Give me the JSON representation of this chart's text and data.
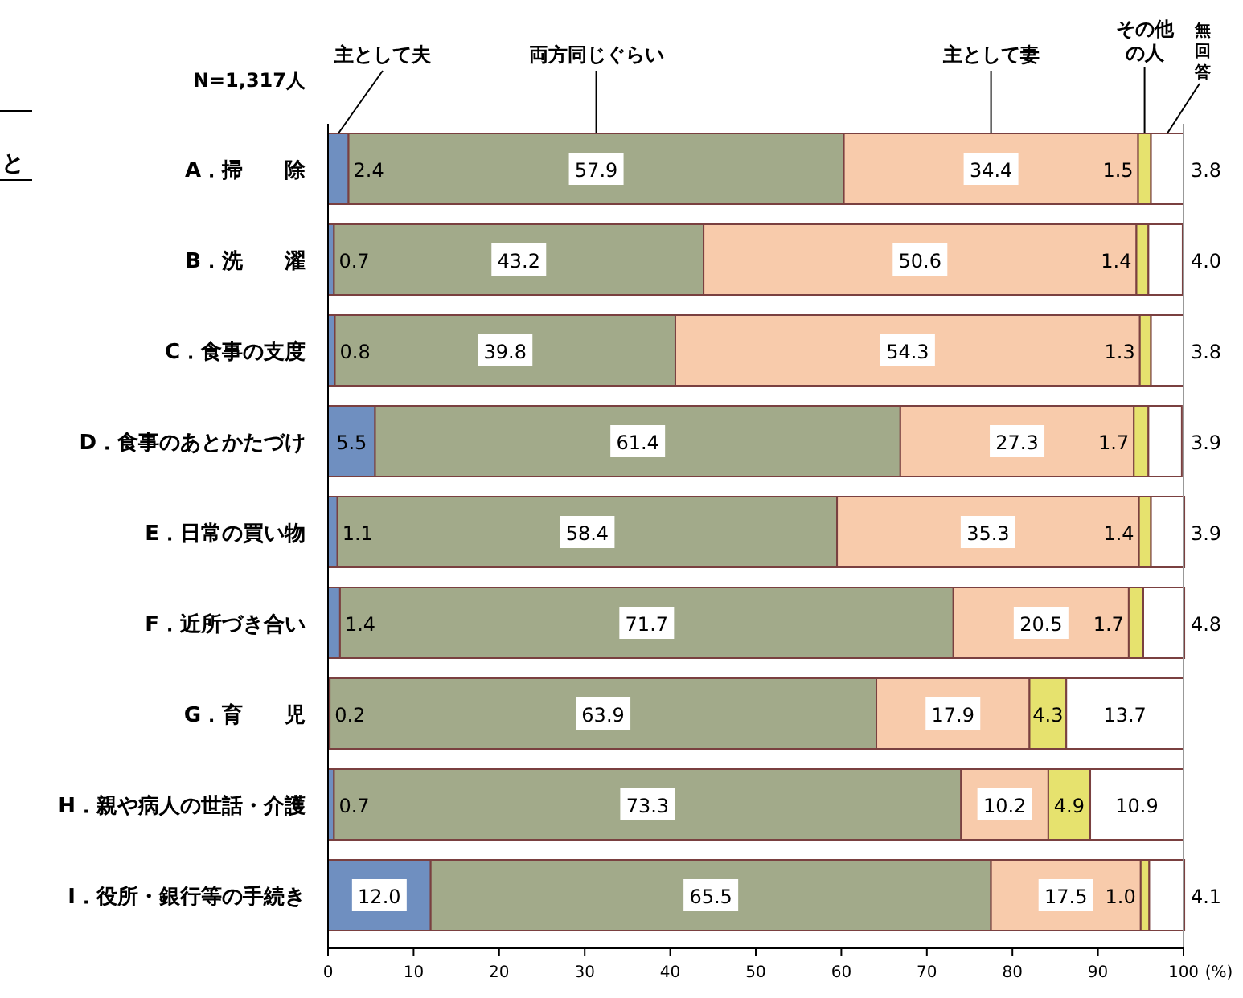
{
  "chart_data": {
    "type": "bar",
    "orientation": "horizontal",
    "stacked": true,
    "legend": "top",
    "xlabel": "(%)",
    "annotations": [
      "N=1,317人",
      "と"
    ],
    "categories": [
      "A．掃　　除",
      "B．洗　　濯",
      "C．食事の支度",
      "D．食事のあとかたづけ",
      "E．日常の買い物",
      "F．近所づき合い",
      "G．育　　児",
      "H．親や病人の世話・介護",
      "I．役所・銀行等の手続き"
    ],
    "xlim": [
      0,
      100
    ],
    "xticks": [
      0,
      10,
      20,
      30,
      40,
      50,
      60,
      70,
      80,
      90,
      100
    ],
    "series": [
      {
        "name": "主として夫",
        "color": "#6f8fc0",
        "values": [
          2.4,
          0.7,
          0.8,
          5.5,
          1.1,
          1.4,
          0.2,
          0.7,
          12.0
        ],
        "value_labels": [
          "2.4",
          "0.7",
          "0.8",
          "5.5",
          "1.1",
          "1.4",
          "0.2",
          "0.7",
          "12.0"
        ]
      },
      {
        "name": "両方同じぐらい",
        "color": "#a2aa8a",
        "values": [
          57.9,
          43.2,
          39.8,
          61.4,
          58.4,
          71.7,
          63.9,
          73.3,
          65.5
        ],
        "value_labels": [
          "57.9",
          "43.2",
          "39.8",
          "61.4",
          "58.4",
          "71.7",
          "63.9",
          "73.3",
          "65.5"
        ]
      },
      {
        "name": "主として妻",
        "color": "#f8cbab",
        "values": [
          34.4,
          50.6,
          54.3,
          27.3,
          35.3,
          20.5,
          17.9,
          10.2,
          17.5
        ],
        "value_labels": [
          "34.4",
          "50.6",
          "54.3",
          "27.3",
          "35.3",
          "20.5",
          "17.9",
          "10.2",
          "17.5"
        ]
      },
      {
        "name": "その他の人",
        "color": "#e6e26e",
        "values": [
          1.5,
          1.4,
          1.3,
          1.7,
          1.4,
          1.7,
          4.3,
          4.9,
          1.0
        ],
        "value_labels": [
          "1.5",
          "1.4",
          "1.3",
          "1.7",
          "1.4",
          "1.7",
          "4.3",
          "4.9",
          "1.0"
        ]
      },
      {
        "name": "無回答",
        "color": "#ffffff",
        "values": [
          3.8,
          4.0,
          3.8,
          3.9,
          3.9,
          4.8,
          13.7,
          10.9,
          4.1
        ],
        "value_labels": [
          "3.8",
          "4.0",
          "3.8",
          "3.9",
          "3.9",
          "4.8",
          "13.7",
          "10.9",
          "4.1"
        ]
      }
    ]
  }
}
